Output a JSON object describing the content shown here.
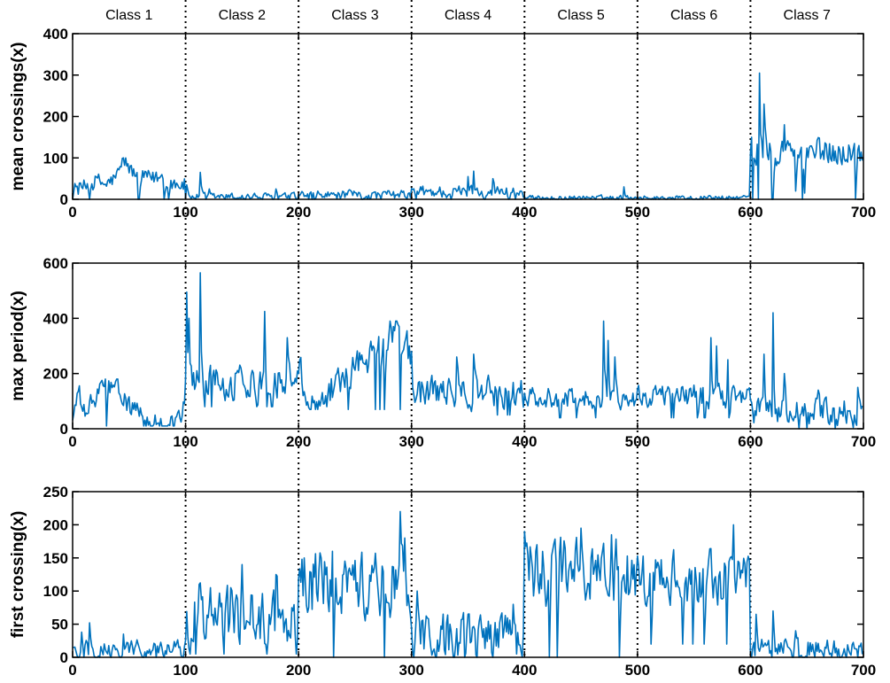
{
  "chart_data": {
    "type": "line",
    "x_range": [
      0,
      700
    ],
    "class_boundaries": [
      100,
      200,
      300,
      400,
      500,
      600
    ],
    "class_labels": [
      "Class 1",
      "Class 2",
      "Class 3",
      "Class 4",
      "Class 5",
      "Class 6",
      "Class 7"
    ],
    "x_ticks": [
      "0",
      "100",
      "200",
      "300",
      "400",
      "500",
      "600",
      "700"
    ],
    "line_color": "#0072BD",
    "divider_style": "dotted black",
    "panels": [
      {
        "ylabel": "mean crossings(x)",
        "ylim": [
          0,
          400
        ],
        "y_ticks": [
          "0",
          "100",
          "200",
          "300",
          "400"
        ],
        "x_ticks": [
          "0",
          "100",
          "200",
          "300",
          "400",
          "500",
          "600",
          "700"
        ],
        "class_segments": [
          {
            "class": "Class 1",
            "base": 40,
            "noise": 18,
            "min": 0,
            "max": 100,
            "key_points": [
              [
                0,
                25
              ],
              [
                10,
                30
              ],
              [
                20,
                45
              ],
              [
                30,
                35
              ],
              [
                40,
                60
              ],
              [
                45,
                100
              ],
              [
                50,
                70
              ],
              [
                60,
                55
              ],
              [
                70,
                50
              ],
              [
                80,
                55
              ],
              [
                90,
                40
              ],
              [
                100,
                35
              ]
            ]
          },
          {
            "class": "Class 2",
            "base": 6,
            "noise": 8,
            "min": 0,
            "max": 65,
            "spikes": [
              [
                101,
                35
              ],
              [
                113,
                65
              ],
              [
                121,
                25
              ],
              [
                180,
                25
              ]
            ]
          },
          {
            "class": "Class 3",
            "base": 10,
            "noise": 10,
            "min": 0,
            "max": 30
          },
          {
            "class": "Class 4",
            "base": 18,
            "noise": 14,
            "min": 0,
            "max": 68,
            "spikes": [
              [
                350,
                55
              ],
              [
                355,
                68
              ],
              [
                372,
                50
              ]
            ]
          },
          {
            "class": "Class 5",
            "base": 4,
            "noise": 5,
            "min": 0,
            "max": 30,
            "spikes": [
              [
                488,
                30
              ]
            ]
          },
          {
            "class": "Class 6",
            "base": 4,
            "noise": 5,
            "min": 0,
            "max": 25
          },
          {
            "class": "Class 7",
            "base": 115,
            "noise": 30,
            "min": 0,
            "max": 310,
            "spikes": [
              [
                601,
                150
              ],
              [
                608,
                305
              ],
              [
                612,
                230
              ],
              [
                620,
                0
              ],
              [
                630,
                180
              ],
              [
                640,
                20
              ],
              [
                648,
                15
              ]
            ]
          }
        ]
      },
      {
        "ylabel": "max period(x)",
        "ylim": [
          0,
          600
        ],
        "y_ticks": [
          "0",
          "200",
          "400",
          "600"
        ],
        "x_ticks": [
          "0",
          "100",
          "200",
          "300",
          "400",
          "500",
          "600",
          "700"
        ],
        "class_segments": [
          {
            "class": "Class 1",
            "base": 50,
            "noise": 35,
            "min": 10,
            "max": 180,
            "key_points": [
              [
                0,
                40
              ],
              [
                5,
                130
              ],
              [
                10,
                50
              ],
              [
                30,
                175
              ],
              [
                60,
                40
              ],
              [
                70,
                20
              ],
              [
                90,
                20
              ],
              [
                100,
                90
              ]
            ]
          },
          {
            "class": "Class 2",
            "base": 170,
            "noise": 55,
            "min": 80,
            "max": 570,
            "spikes": [
              [
                101,
                495
              ],
              [
                103,
                400
              ],
              [
                113,
                565
              ],
              [
                170,
                425
              ],
              [
                190,
                330
              ]
            ]
          },
          {
            "class": "Class 3",
            "base": 210,
            "noise": 55,
            "min": 70,
            "max": 390,
            "key_points": [
              [
                200,
                250
              ],
              [
                210,
                70
              ],
              [
                230,
                160
              ],
              [
                260,
                250
              ],
              [
                270,
                330
              ],
              [
                290,
                390
              ],
              [
                300,
                240
              ]
            ]
          },
          {
            "class": "Class 4",
            "base": 130,
            "noise": 50,
            "min": 50,
            "max": 280,
            "spikes": [
              [
                300,
                280
              ],
              [
                340,
                260
              ],
              [
                355,
                270
              ]
            ]
          },
          {
            "class": "Class 5",
            "base": 110,
            "noise": 35,
            "min": 40,
            "max": 400,
            "spikes": [
              [
                470,
                390
              ],
              [
                474,
                320
              ],
              [
                480,
                260
              ]
            ]
          },
          {
            "class": "Class 6",
            "base": 120,
            "noise": 40,
            "min": 40,
            "max": 330,
            "spikes": [
              [
                565,
                330
              ],
              [
                570,
                300
              ],
              [
                580,
                250
              ]
            ]
          },
          {
            "class": "Class 7",
            "base": 60,
            "noise": 45,
            "min": 0,
            "max": 425,
            "spikes": [
              [
                620,
                420
              ],
              [
                612,
                270
              ],
              [
                630,
                200
              ],
              [
                660,
                140
              ],
              [
                695,
                150
              ]
            ]
          }
        ]
      },
      {
        "ylabel": "first crossing(x)",
        "ylim": [
          0,
          250
        ],
        "y_ticks": [
          "0",
          "50",
          "100",
          "150",
          "200",
          "250"
        ],
        "x_ticks": [
          "0",
          "100",
          "200",
          "300",
          "400",
          "500",
          "600",
          "700"
        ],
        "class_segments": [
          {
            "class": "Class 1",
            "base": 12,
            "noise": 12,
            "min": 0,
            "max": 55,
            "spikes": [
              [
                8,
                38
              ],
              [
                15,
                52
              ],
              [
                45,
                35
              ]
            ]
          },
          {
            "class": "Class 2",
            "base": 60,
            "noise": 40,
            "min": 5,
            "max": 140,
            "spikes": [
              [
                112,
                110
              ],
              [
                140,
                105
              ],
              [
                150,
                140
              ],
              [
                180,
                125
              ]
            ]
          },
          {
            "class": "Class 3",
            "base": 110,
            "noise": 45,
            "min": 0,
            "max": 225,
            "spikes": [
              [
                205,
                150
              ],
              [
                220,
                150
              ],
              [
                230,
                160
              ],
              [
                290,
                220
              ],
              [
                294,
                180
              ]
            ]
          },
          {
            "class": "Class 4",
            "base": 30,
            "noise": 32,
            "min": 0,
            "max": 105,
            "spikes": [
              [
                305,
                100
              ],
              [
                390,
                80
              ]
            ]
          },
          {
            "class": "Class 5",
            "base": 130,
            "noise": 45,
            "min": 0,
            "max": 195,
            "spikes": [
              [
                400,
                190
              ],
              [
                450,
                195
              ],
              [
                477,
                185
              ]
            ]
          },
          {
            "class": "Class 6",
            "base": 120,
            "noise": 35,
            "min": 20,
            "max": 200,
            "spikes": [
              [
                585,
                200
              ]
            ]
          },
          {
            "class": "Class 7",
            "base": 12,
            "noise": 15,
            "min": 0,
            "max": 70,
            "spikes": [
              [
                605,
                65
              ],
              [
                620,
                70
              ],
              [
                640,
                40
              ]
            ]
          }
        ]
      }
    ]
  }
}
